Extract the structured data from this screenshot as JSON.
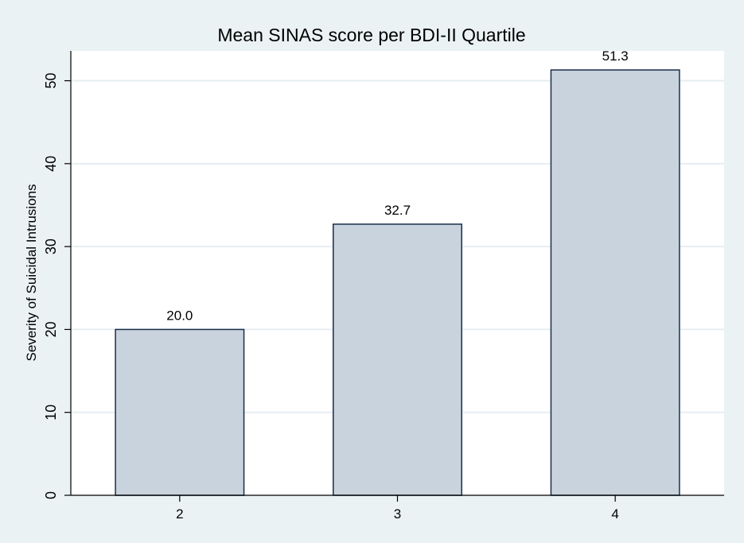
{
  "chart_data": {
    "type": "bar",
    "title": "Mean SINAS score per BDI-II Quartile",
    "xlabel": "",
    "ylabel": "Severity of Suicidal Intrusions",
    "categories": [
      "2",
      "3",
      "4"
    ],
    "values": [
      20.0,
      32.7,
      51.3
    ],
    "data_labels": [
      "20.0",
      "32.7",
      "51.3"
    ],
    "yticks": [
      0,
      10,
      20,
      30,
      40,
      50
    ],
    "ytick_labels": [
      "0",
      "10",
      "20",
      "30",
      "40",
      "50"
    ],
    "ylim": [
      0,
      53.6
    ],
    "grid": true,
    "legend": "none",
    "colors": {
      "outer_background": "#eaf2f3",
      "plot_background": "#ffffff",
      "bar_fill": "#c8d3dd",
      "bar_stroke": "#1a2e4a",
      "gridline": "#e6eef1",
      "axis": "#000000"
    }
  }
}
